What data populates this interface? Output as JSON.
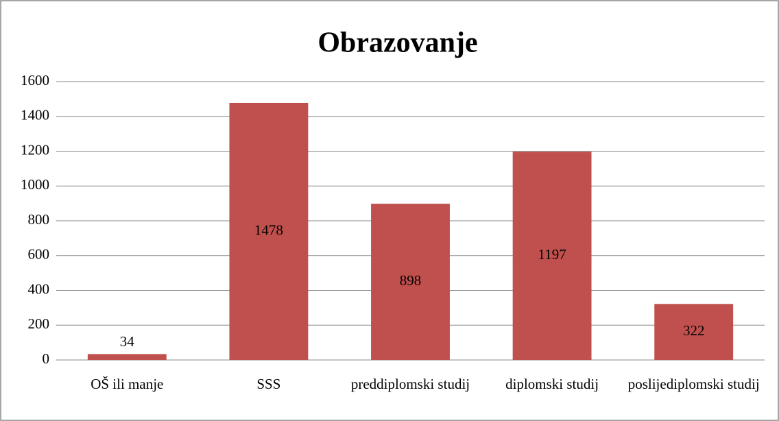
{
  "chart_data": {
    "type": "bar",
    "title": "Obrazovanje",
    "categories": [
      "OŠ ili manje",
      "SSS",
      "preddiplomski studij",
      "diplomski studij",
      "poslijediplomski studij"
    ],
    "values": [
      34,
      1478,
      898,
      1197,
      322
    ],
    "color": "#c0504d",
    "ylim": [
      0,
      1600
    ],
    "yticks": [
      0,
      200,
      400,
      600,
      800,
      1000,
      1200,
      1400,
      1600
    ],
    "grid": true
  }
}
